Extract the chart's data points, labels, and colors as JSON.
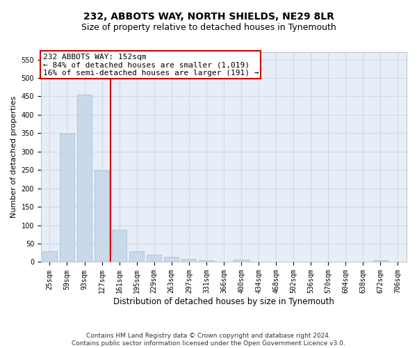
{
  "title": "232, ABBOTS WAY, NORTH SHIELDS, NE29 8LR",
  "subtitle": "Size of property relative to detached houses in Tynemouth",
  "xlabel": "Distribution of detached houses by size in Tynemouth",
  "ylabel": "Number of detached properties",
  "footnote": "Contains HM Land Registry data © Crown copyright and database right 2024.\nContains public sector information licensed under the Open Government Licence v3.0.",
  "bar_labels": [
    "25sqm",
    "59sqm",
    "93sqm",
    "127sqm",
    "161sqm",
    "195sqm",
    "229sqm",
    "263sqm",
    "297sqm",
    "331sqm",
    "366sqm",
    "400sqm",
    "434sqm",
    "468sqm",
    "502sqm",
    "536sqm",
    "570sqm",
    "604sqm",
    "638sqm",
    "672sqm",
    "706sqm"
  ],
  "bar_values": [
    30,
    348,
    455,
    248,
    88,
    30,
    20,
    15,
    8,
    5,
    0,
    7,
    0,
    0,
    0,
    0,
    0,
    0,
    0,
    5,
    0
  ],
  "bar_color": "#c9d9ea",
  "bar_edge_color": "#a0b8d0",
  "grid_color": "#d0d8e8",
  "background_color": "#e8eef8",
  "vline_color": "#cc0000",
  "annotation_text": "232 ABBOTS WAY: 152sqm\n← 84% of detached houses are smaller (1,019)\n16% of semi-detached houses are larger (191) →",
  "annotation_box_color": "#cc0000",
  "ylim": [
    0,
    570
  ],
  "yticks": [
    0,
    50,
    100,
    150,
    200,
    250,
    300,
    350,
    400,
    450,
    500,
    550
  ],
  "title_fontsize": 10,
  "subtitle_fontsize": 9,
  "xlabel_fontsize": 8.5,
  "ylabel_fontsize": 8,
  "tick_fontsize": 7,
  "annotation_fontsize": 8,
  "footnote_fontsize": 6.5
}
